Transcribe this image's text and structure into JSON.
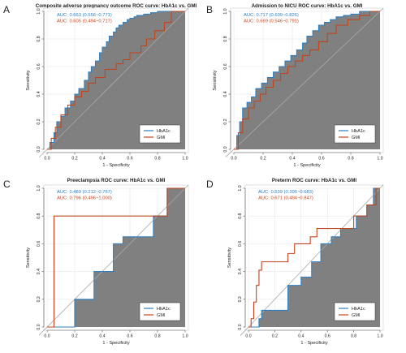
{
  "figure": {
    "panels": [
      {
        "letter": "A"
      },
      {
        "letter": "B"
      },
      {
        "letter": "C"
      },
      {
        "letter": "D"
      }
    ]
  },
  "colors": {
    "hba1c": "#2f7fc1",
    "gmi": "#c0451f",
    "fill": "#808080",
    "diagonal": "#a8a8a8",
    "grid": "#e3e3e3",
    "axis": "#555555",
    "text": "#222222"
  },
  "chart_data": [
    {
      "type": "line",
      "panel": "A",
      "title": "Composite adverse pregnancy outcome ROC curve: HbA1c vs. GMI",
      "xlabel": "1 - Specificity",
      "ylabel": "Sensitivity",
      "xlim": [
        0,
        1
      ],
      "ylim": [
        0,
        1
      ],
      "xticks": [
        "0.0",
        "0.2",
        "0.4",
        "0.6",
        "0.8",
        "1.0"
      ],
      "yticks": [
        "0.0",
        "0.2",
        "0.4",
        "0.6",
        "0.8",
        "1.0"
      ],
      "grid": true,
      "legend_position": "bottom-right",
      "auc_labels": [
        "AUC: 0.663 (0.556~0.771)",
        "AUC: 0.605 (0.494~0.717)"
      ],
      "fill_under": "HbA1c",
      "series": [
        {
          "name": "HbA1c",
          "x": [
            0,
            0.02,
            0.02,
            0.05,
            0.05,
            0.07,
            0.07,
            0.1,
            0.1,
            0.13,
            0.13,
            0.17,
            0.17,
            0.2,
            0.2,
            0.23,
            0.23,
            0.27,
            0.27,
            0.3,
            0.3,
            0.32,
            0.32,
            0.35,
            0.35,
            0.38,
            0.38,
            0.4,
            0.4,
            0.43,
            0.43,
            0.45,
            0.45,
            0.48,
            0.48,
            0.5,
            0.5,
            0.52,
            0.52,
            0.55,
            0.55,
            0.58,
            0.58,
            0.6,
            0.6,
            0.63,
            0.63,
            0.65,
            0.65,
            0.7,
            0.7,
            0.75,
            0.75,
            0.8,
            0.8,
            0.85,
            0.85,
            0.88,
            0.88,
            0.92,
            0.92,
            0.96,
            0.96,
            1.0
          ],
          "y": [
            0,
            0,
            0.05,
            0.05,
            0.12,
            0.12,
            0.2,
            0.2,
            0.24,
            0.24,
            0.3,
            0.3,
            0.35,
            0.35,
            0.4,
            0.4,
            0.44,
            0.44,
            0.5,
            0.5,
            0.56,
            0.56,
            0.6,
            0.6,
            0.64,
            0.64,
            0.7,
            0.7,
            0.74,
            0.74,
            0.78,
            0.78,
            0.82,
            0.82,
            0.85,
            0.85,
            0.88,
            0.88,
            0.9,
            0.9,
            0.92,
            0.92,
            0.94,
            0.94,
            0.95,
            0.95,
            0.96,
            0.96,
            0.97,
            0.97,
            0.98,
            0.98,
            0.99,
            0.99,
            1.0,
            1.0,
            1.0,
            1.0,
            1.0,
            1.0,
            1.0,
            1.0,
            1.0,
            1.0
          ]
        },
        {
          "name": "GMI",
          "x": [
            0,
            0.03,
            0.03,
            0.06,
            0.06,
            0.1,
            0.1,
            0.15,
            0.15,
            0.2,
            0.2,
            0.25,
            0.25,
            0.3,
            0.3,
            0.35,
            0.35,
            0.42,
            0.42,
            0.5,
            0.5,
            0.55,
            0.55,
            0.6,
            0.6,
            0.68,
            0.68,
            0.72,
            0.72,
            0.78,
            0.78,
            0.85,
            0.85,
            0.9,
            0.9,
            1.0
          ],
          "y": [
            0,
            0,
            0.08,
            0.08,
            0.16,
            0.16,
            0.25,
            0.25,
            0.32,
            0.32,
            0.38,
            0.38,
            0.42,
            0.42,
            0.48,
            0.48,
            0.52,
            0.52,
            0.58,
            0.58,
            0.62,
            0.62,
            0.65,
            0.65,
            0.7,
            0.7,
            0.75,
            0.75,
            0.8,
            0.8,
            0.86,
            0.86,
            0.92,
            0.92,
            1.0,
            1.0
          ]
        }
      ]
    },
    {
      "type": "line",
      "panel": "B",
      "title": "Admission to NICU ROC curve: HbA1c vs. GMI",
      "xlabel": "1 - Specificity",
      "ylabel": "Sensitivity",
      "xlim": [
        0,
        1
      ],
      "ylim": [
        0,
        1
      ],
      "xticks": [
        "0.0",
        "0.2",
        "0.4",
        "0.6",
        "0.8",
        "1.0"
      ],
      "yticks": [
        "0.0",
        "0.2",
        "0.4",
        "0.6",
        "0.8",
        "1.0"
      ],
      "grid": true,
      "legend_position": "bottom-right",
      "auc_labels": [
        "AUC: 0.717 (0.609~0.826)",
        "AUC: 0.669 (0.546~0.791)"
      ],
      "fill_under": "HbA1c",
      "series": [
        {
          "name": "HbA1c",
          "x": [
            0,
            0.02,
            0.02,
            0.04,
            0.04,
            0.06,
            0.06,
            0.09,
            0.09,
            0.12,
            0.12,
            0.15,
            0.15,
            0.19,
            0.19,
            0.23,
            0.23,
            0.27,
            0.27,
            0.31,
            0.31,
            0.35,
            0.35,
            0.39,
            0.39,
            0.43,
            0.43,
            0.47,
            0.47,
            0.5,
            0.5,
            0.54,
            0.54,
            0.58,
            0.58,
            0.62,
            0.62,
            0.66,
            0.66,
            0.7,
            0.7,
            0.75,
            0.75,
            0.8,
            0.8,
            0.86,
            0.86,
            0.92,
            0.92,
            1.0
          ],
          "y": [
            0,
            0,
            0.1,
            0.1,
            0.2,
            0.2,
            0.3,
            0.3,
            0.34,
            0.34,
            0.38,
            0.38,
            0.44,
            0.44,
            0.48,
            0.48,
            0.52,
            0.52,
            0.56,
            0.56,
            0.6,
            0.6,
            0.64,
            0.64,
            0.68,
            0.68,
            0.72,
            0.72,
            0.77,
            0.77,
            0.82,
            0.82,
            0.86,
            0.86,
            0.9,
            0.9,
            0.92,
            0.92,
            0.94,
            0.94,
            0.96,
            0.96,
            0.97,
            0.97,
            0.98,
            0.98,
            1.0,
            1.0,
            1.0,
            1.0
          ]
        },
        {
          "name": "GMI",
          "x": [
            0,
            0.03,
            0.03,
            0.06,
            0.06,
            0.1,
            0.1,
            0.14,
            0.14,
            0.18,
            0.18,
            0.22,
            0.22,
            0.27,
            0.27,
            0.32,
            0.32,
            0.37,
            0.37,
            0.42,
            0.42,
            0.47,
            0.47,
            0.52,
            0.52,
            0.58,
            0.58,
            0.64,
            0.64,
            0.7,
            0.7,
            0.78,
            0.78,
            0.86,
            0.86,
            0.93,
            0.93,
            1.0
          ],
          "y": [
            0,
            0,
            0.12,
            0.12,
            0.22,
            0.22,
            0.3,
            0.3,
            0.35,
            0.35,
            0.4,
            0.4,
            0.45,
            0.45,
            0.5,
            0.5,
            0.55,
            0.55,
            0.6,
            0.6,
            0.64,
            0.64,
            0.68,
            0.68,
            0.72,
            0.72,
            0.78,
            0.78,
            0.84,
            0.84,
            0.9,
            0.9,
            0.94,
            0.94,
            0.97,
            0.97,
            1.0,
            1.0
          ]
        }
      ]
    },
    {
      "type": "line",
      "panel": "C",
      "title": "Preeclampsia ROC curve: HbA1c vs. GMI",
      "xlabel": "1 - Specificity",
      "ylabel": "Sensitivity",
      "xlim": [
        0,
        1
      ],
      "ylim": [
        0,
        1
      ],
      "xticks": [
        "0.0",
        "0.2",
        "0.4",
        "0.6",
        "0.8",
        "1.0"
      ],
      "yticks": [
        "0.0",
        "0.2",
        "0.4",
        "0.6",
        "0.8",
        "1.0"
      ],
      "grid": true,
      "legend_position": "bottom-right",
      "auc_labels": [
        "AUC: 0.489 (0.212~0.767)",
        "AUC: 0.796 (0.496~1.000)"
      ],
      "fill_under": "HbA1c",
      "series": [
        {
          "name": "HbA1c",
          "x": [
            0,
            0.2,
            0.2,
            0.34,
            0.34,
            0.48,
            0.48,
            0.55,
            0.55,
            0.77,
            0.77,
            0.87,
            0.87,
            0.93,
            0.93,
            1.0
          ],
          "y": [
            0,
            0,
            0.2,
            0.2,
            0.4,
            0.4,
            0.6,
            0.6,
            0.65,
            0.65,
            0.8,
            0.8,
            1.0,
            1.0,
            1.0,
            1.0
          ]
        },
        {
          "name": "GMI",
          "x": [
            0,
            0.05,
            0.05,
            0.75,
            0.75,
            0.87,
            0.87,
            1.0
          ],
          "y": [
            0,
            0,
            0.8,
            0.8,
            0.8,
            0.8,
            1.0,
            1.0
          ]
        }
      ]
    },
    {
      "type": "line",
      "panel": "D",
      "title": "Preterm ROC curve: HbA1c vs. GMI",
      "xlabel": "1 - Specificity",
      "ylabel": "Sensitivity",
      "xlim": [
        0,
        1
      ],
      "ylim": [
        0,
        1
      ],
      "xticks": [
        "0.0",
        "0.2",
        "0.4",
        "0.6",
        "0.8",
        "1.0"
      ],
      "yticks": [
        "0.0",
        "0.2",
        "0.4",
        "0.6",
        "0.8",
        "1.0"
      ],
      "grid": true,
      "legend_position": "bottom-right",
      "auc_labels": [
        "AUC: 0.539 (0.395~0.683)",
        "AUC: 0.671 (0.494~0.847)"
      ],
      "fill_under": "HbA1c",
      "series": [
        {
          "name": "HbA1c",
          "x": [
            0,
            0.08,
            0.08,
            0.1,
            0.1,
            0.3,
            0.3,
            0.4,
            0.4,
            0.48,
            0.48,
            0.55,
            0.55,
            0.63,
            0.63,
            0.7,
            0.7,
            0.82,
            0.82,
            0.9,
            0.9,
            0.95,
            0.95,
            1.0
          ],
          "y": [
            0,
            0,
            0.06,
            0.06,
            0.12,
            0.12,
            0.3,
            0.3,
            0.36,
            0.36,
            0.47,
            0.47,
            0.6,
            0.6,
            0.65,
            0.65,
            0.71,
            0.71,
            0.8,
            0.8,
            0.88,
            0.88,
            1.0,
            1.0
          ]
        },
        {
          "name": "GMI",
          "x": [
            0,
            0.02,
            0.02,
            0.04,
            0.04,
            0.06,
            0.06,
            0.08,
            0.08,
            0.1,
            0.1,
            0.3,
            0.3,
            0.35,
            0.35,
            0.47,
            0.47,
            0.52,
            0.52,
            0.55,
            0.55,
            0.8,
            0.8,
            0.9,
            0.9,
            0.97,
            0.97,
            1.0
          ],
          "y": [
            0,
            0,
            0.06,
            0.06,
            0.18,
            0.18,
            0.3,
            0.3,
            0.41,
            0.41,
            0.47,
            0.47,
            0.53,
            0.53,
            0.6,
            0.6,
            0.65,
            0.65,
            0.71,
            0.71,
            0.71,
            0.71,
            0.8,
            0.8,
            0.88,
            0.88,
            1.0,
            1.0
          ]
        }
      ]
    }
  ]
}
